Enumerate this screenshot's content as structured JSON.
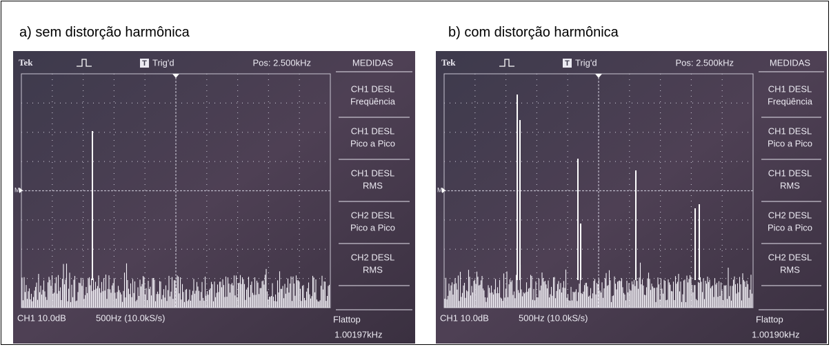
{
  "panels": [
    {
      "caption": "a) sem distorção harmônica",
      "screen": {
        "brand": "Tek",
        "trigger_icon": "T",
        "trigger": "Trig'd",
        "position": "Pos: 2.500kHz",
        "marker": "M",
        "menu_title": "MEDIDAS",
        "menu": [
          [
            "CH1 DESL",
            "Freqüência"
          ],
          [
            "CH1 DESL",
            "Pico a Pico"
          ],
          [
            "CH1 DESL",
            "RMS"
          ],
          [
            "CH2 DESL",
            "Pico a Pico"
          ],
          [
            "CH2 DESL",
            "RMS"
          ]
        ],
        "channel": "CH1 10.0dB",
        "timebase": "500Hz (10.0kS/s)",
        "window": "Flattop",
        "frequency": "1.00197kHz"
      }
    },
    {
      "caption": "b) com distorção harmônica",
      "screen": {
        "brand": "Tek",
        "trigger_icon": "T",
        "trigger": "Trig'd",
        "position": "Pos: 2.500kHz",
        "marker": "M",
        "menu_title": "MEDIDAS",
        "menu": [
          [
            "CH1 DESL",
            "Freqüência"
          ],
          [
            "CH1 DESL",
            "Pico a Pico"
          ],
          [
            "CH1 DESL",
            "RMS"
          ],
          [
            "CH2 DESL",
            "Pico a Pico"
          ],
          [
            "CH2 DESL",
            "RMS"
          ]
        ],
        "channel": "CH1 10.0dB",
        "timebase": "500Hz (10.0kS/s)",
        "window": "Flattop",
        "frequency": "1.00190kHz"
      }
    }
  ]
}
